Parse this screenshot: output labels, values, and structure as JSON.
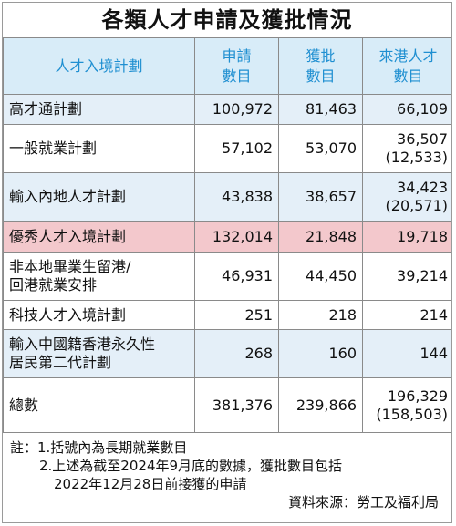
{
  "title": "各類人才申請及獲批情況",
  "header": {
    "col0": "人才入境計劃",
    "col1": [
      "申請",
      "數目"
    ],
    "col2": [
      "獲批",
      "數目"
    ],
    "col3": [
      "來港人才",
      "數目"
    ]
  },
  "rows": [
    {
      "name": [
        "高才通計劃"
      ],
      "applied": "100,972",
      "approved": "81,463",
      "arrived": [
        "66,109"
      ]
    },
    {
      "name": [
        "一般就業計劃"
      ],
      "applied": "57,102",
      "approved": "53,070",
      "arrived": [
        "36,507",
        "(12,533)"
      ]
    },
    {
      "name": [
        "輸入內地人才計劃"
      ],
      "applied": "43,838",
      "approved": "38,657",
      "arrived": [
        "34,423",
        "(20,571)"
      ]
    },
    {
      "name": [
        "優秀人才入境計劃"
      ],
      "applied": "132,014",
      "approved": "21,848",
      "arrived": [
        "19,718"
      ]
    },
    {
      "name": [
        "非本地畢業生留港/",
        "回港就業安排"
      ],
      "applied": "46,931",
      "approved": "44,450",
      "arrived": [
        "39,214"
      ]
    },
    {
      "name": [
        "科技人才入境計劃"
      ],
      "applied": "251",
      "approved": "218",
      "arrived": [
        "214"
      ]
    },
    {
      "name": [
        "輸入中國籍香港永久性",
        "居民第二代計劃"
      ],
      "applied": "268",
      "approved": "160",
      "arrived": [
        "144"
      ]
    },
    {
      "name": [
        "總數"
      ],
      "applied": "381,376",
      "approved": "239,866",
      "arrived": [
        "196,329",
        "(158,503)"
      ]
    }
  ],
  "notes": {
    "line1": "註：1.括號內為長期就業數目",
    "line2": "2.上述為截至2024年9月底的數據，獲批數目包括",
    "line3": "2022年12月28日前接獲的申請"
  },
  "source": "資料來源：勞工及福利局",
  "colors": {
    "header_bg": "#d8ecf8",
    "header_text": "#1f8fd1",
    "row_shade": "#e4eff8",
    "highlight": "#f3c8cc"
  }
}
